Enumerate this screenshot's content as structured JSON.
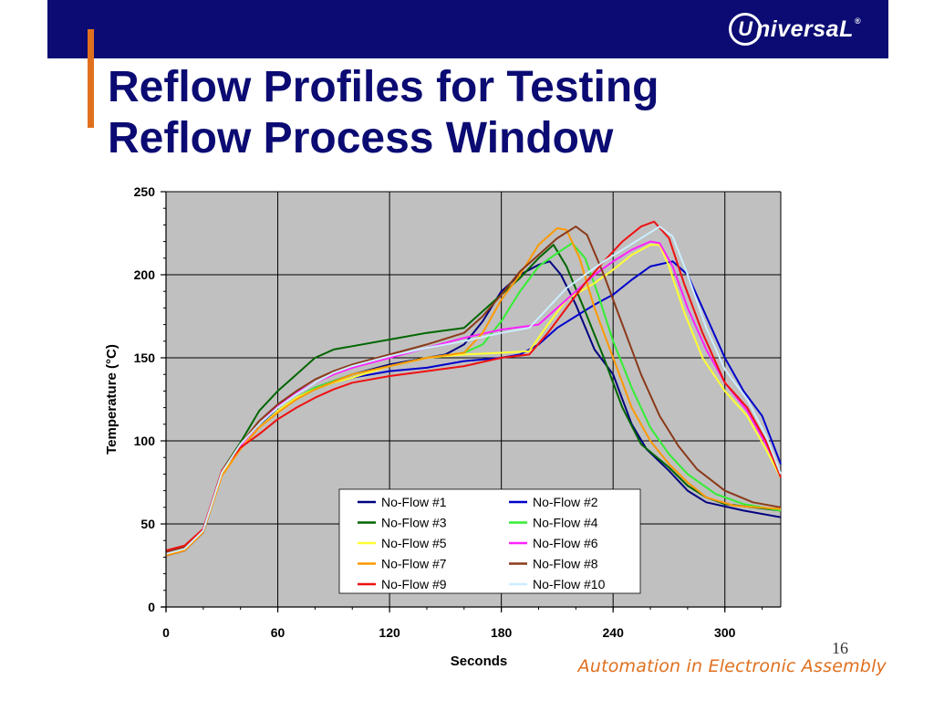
{
  "slide": {
    "title_line1": "Reflow Profiles for Testing",
    "title_line2": "Reflow Process Window",
    "logo_mark": "U",
    "logo_text": "niversaL",
    "logo_reg": "®",
    "page_number": "16",
    "tagline": "Automation in Electronic Assembly"
  },
  "colors": {
    "header_bar": "#0b0b73",
    "accent": "#e0701e",
    "plot_background": "#c0c0c0"
  },
  "chart_data": {
    "type": "line",
    "title": "",
    "xlabel": "Seconds",
    "ylabel": "Temperature (°C)",
    "xlim": [
      0,
      330
    ],
    "ylim": [
      0,
      250
    ],
    "xticks": [
      0,
      60,
      120,
      180,
      240,
      300
    ],
    "yticks": [
      0,
      50,
      100,
      150,
      200,
      250
    ],
    "grid": true,
    "legend_position": "lower-center",
    "series": [
      {
        "name": "No-Flow #1",
        "color": "#000080",
        "points": [
          [
            0,
            31
          ],
          [
            10,
            34
          ],
          [
            20,
            45
          ],
          [
            30,
            80
          ],
          [
            40,
            96
          ],
          [
            50,
            110
          ],
          [
            60,
            118
          ],
          [
            70,
            126
          ],
          [
            80,
            132
          ],
          [
            90,
            136
          ],
          [
            100,
            140
          ],
          [
            120,
            146
          ],
          [
            140,
            150
          ],
          [
            150,
            152
          ],
          [
            160,
            158
          ],
          [
            170,
            172
          ],
          [
            180,
            190
          ],
          [
            190,
            200
          ],
          [
            200,
            206
          ],
          [
            206,
            208
          ],
          [
            212,
            200
          ],
          [
            220,
            182
          ],
          [
            230,
            155
          ],
          [
            240,
            140
          ],
          [
            250,
            110
          ],
          [
            258,
            95
          ],
          [
            270,
            82
          ],
          [
            280,
            70
          ],
          [
            290,
            63
          ],
          [
            310,
            58
          ],
          [
            330,
            54
          ]
        ]
      },
      {
        "name": "No-Flow #2",
        "color": "#0000cc",
        "points": [
          [
            0,
            31
          ],
          [
            10,
            34
          ],
          [
            20,
            45
          ],
          [
            30,
            80
          ],
          [
            40,
            96
          ],
          [
            50,
            110
          ],
          [
            60,
            118
          ],
          [
            70,
            126
          ],
          [
            80,
            131
          ],
          [
            90,
            135
          ],
          [
            100,
            138
          ],
          [
            120,
            142
          ],
          [
            140,
            144
          ],
          [
            160,
            148
          ],
          [
            180,
            150
          ],
          [
            190,
            152
          ],
          [
            200,
            158
          ],
          [
            210,
            168
          ],
          [
            220,
            175
          ],
          [
            230,
            182
          ],
          [
            240,
            188
          ],
          [
            250,
            197
          ],
          [
            260,
            205
          ],
          [
            272,
            208
          ],
          [
            280,
            200
          ],
          [
            290,
            175
          ],
          [
            300,
            150
          ],
          [
            310,
            130
          ],
          [
            320,
            115
          ],
          [
            330,
            86
          ]
        ]
      },
      {
        "name": "No-Flow #3",
        "color": "#006600",
        "points": [
          [
            0,
            32
          ],
          [
            10,
            35
          ],
          [
            20,
            46
          ],
          [
            30,
            82
          ],
          [
            40,
            99
          ],
          [
            50,
            118
          ],
          [
            60,
            130
          ],
          [
            70,
            140
          ],
          [
            80,
            150
          ],
          [
            90,
            155
          ],
          [
            100,
            157
          ],
          [
            120,
            161
          ],
          [
            140,
            165
          ],
          [
            160,
            168
          ],
          [
            170,
            178
          ],
          [
            180,
            188
          ],
          [
            190,
            198
          ],
          [
            200,
            210
          ],
          [
            208,
            218
          ],
          [
            215,
            205
          ],
          [
            225,
            178
          ],
          [
            235,
            150
          ],
          [
            245,
            120
          ],
          [
            255,
            98
          ],
          [
            270,
            84
          ],
          [
            280,
            73
          ],
          [
            290,
            66
          ],
          [
            300,
            62
          ],
          [
            315,
            60
          ],
          [
            330,
            58
          ]
        ]
      },
      {
        "name": "No-Flow #4",
        "color": "#33ee33",
        "points": [
          [
            0,
            32
          ],
          [
            10,
            35
          ],
          [
            20,
            46
          ],
          [
            30,
            80
          ],
          [
            40,
            96
          ],
          [
            50,
            108
          ],
          [
            60,
            118
          ],
          [
            70,
            126
          ],
          [
            80,
            132
          ],
          [
            100,
            140
          ],
          [
            120,
            145
          ],
          [
            140,
            150
          ],
          [
            160,
            153
          ],
          [
            170,
            158
          ],
          [
            180,
            172
          ],
          [
            190,
            190
          ],
          [
            200,
            205
          ],
          [
            210,
            213
          ],
          [
            218,
            219
          ],
          [
            225,
            210
          ],
          [
            232,
            188
          ],
          [
            240,
            160
          ],
          [
            250,
            132
          ],
          [
            260,
            108
          ],
          [
            270,
            92
          ],
          [
            280,
            80
          ],
          [
            295,
            68
          ],
          [
            310,
            62
          ],
          [
            330,
            58
          ]
        ]
      },
      {
        "name": "No-Flow #5",
        "color": "#ffff33",
        "points": [
          [
            0,
            32
          ],
          [
            10,
            35
          ],
          [
            20,
            46
          ],
          [
            30,
            80
          ],
          [
            40,
            96
          ],
          [
            50,
            108
          ],
          [
            60,
            118
          ],
          [
            70,
            126
          ],
          [
            80,
            131
          ],
          [
            90,
            135
          ],
          [
            100,
            138
          ],
          [
            120,
            145
          ],
          [
            140,
            150
          ],
          [
            160,
            152
          ],
          [
            180,
            153
          ],
          [
            195,
            154
          ],
          [
            205,
            170
          ],
          [
            215,
            185
          ],
          [
            230,
            195
          ],
          [
            240,
            203
          ],
          [
            250,
            212
          ],
          [
            260,
            218
          ],
          [
            265,
            218
          ],
          [
            270,
            205
          ],
          [
            278,
            178
          ],
          [
            288,
            150
          ],
          [
            300,
            130
          ],
          [
            312,
            115
          ],
          [
            322,
            95
          ],
          [
            330,
            78
          ]
        ]
      },
      {
        "name": "No-Flow #6",
        "color": "#ff22ff",
        "points": [
          [
            0,
            33
          ],
          [
            10,
            36
          ],
          [
            20,
            47
          ],
          [
            30,
            82
          ],
          [
            40,
            97
          ],
          [
            50,
            110
          ],
          [
            60,
            121
          ],
          [
            70,
            129
          ],
          [
            80,
            135
          ],
          [
            90,
            140
          ],
          [
            100,
            144
          ],
          [
            120,
            150
          ],
          [
            140,
            156
          ],
          [
            160,
            162
          ],
          [
            180,
            167
          ],
          [
            200,
            170
          ],
          [
            210,
            180
          ],
          [
            220,
            190
          ],
          [
            230,
            200
          ],
          [
            240,
            208
          ],
          [
            250,
            215
          ],
          [
            260,
            220
          ],
          [
            265,
            219
          ],
          [
            272,
            205
          ],
          [
            280,
            180
          ],
          [
            290,
            155
          ],
          [
            300,
            135
          ],
          [
            312,
            118
          ],
          [
            322,
            98
          ],
          [
            330,
            80
          ]
        ]
      },
      {
        "name": "No-Flow #7",
        "color": "#ff9900",
        "points": [
          [
            0,
            31
          ],
          [
            10,
            34
          ],
          [
            20,
            45
          ],
          [
            30,
            79
          ],
          [
            40,
            95
          ],
          [
            50,
            108
          ],
          [
            60,
            117
          ],
          [
            70,
            125
          ],
          [
            80,
            131
          ],
          [
            100,
            140
          ],
          [
            120,
            145
          ],
          [
            140,
            150
          ],
          [
            160,
            153
          ],
          [
            170,
            165
          ],
          [
            180,
            185
          ],
          [
            190,
            200
          ],
          [
            200,
            218
          ],
          [
            210,
            228
          ],
          [
            215,
            227
          ],
          [
            222,
            210
          ],
          [
            230,
            180
          ],
          [
            240,
            150
          ],
          [
            250,
            120
          ],
          [
            260,
            100
          ],
          [
            270,
            86
          ],
          [
            280,
            75
          ],
          [
            290,
            66
          ],
          [
            305,
            61
          ],
          [
            330,
            59
          ]
        ]
      },
      {
        "name": "No-Flow #8",
        "color": "#8b3a1a",
        "points": [
          [
            0,
            33
          ],
          [
            10,
            36
          ],
          [
            20,
            46
          ],
          [
            30,
            82
          ],
          [
            40,
            98
          ],
          [
            50,
            112
          ],
          [
            60,
            122
          ],
          [
            70,
            130
          ],
          [
            80,
            137
          ],
          [
            90,
            142
          ],
          [
            100,
            146
          ],
          [
            120,
            152
          ],
          [
            140,
            158
          ],
          [
            160,
            165
          ],
          [
            170,
            175
          ],
          [
            180,
            188
          ],
          [
            190,
            202
          ],
          [
            200,
            212
          ],
          [
            210,
            222
          ],
          [
            220,
            229
          ],
          [
            226,
            224
          ],
          [
            235,
            200
          ],
          [
            245,
            170
          ],
          [
            255,
            140
          ],
          [
            265,
            115
          ],
          [
            275,
            97
          ],
          [
            285,
            83
          ],
          [
            300,
            70
          ],
          [
            315,
            63
          ],
          [
            330,
            60
          ]
        ]
      },
      {
        "name": "No-Flow #9",
        "color": "#ee1111",
        "points": [
          [
            0,
            34
          ],
          [
            10,
            37
          ],
          [
            20,
            47
          ],
          [
            30,
            82
          ],
          [
            40,
            96
          ],
          [
            50,
            104
          ],
          [
            60,
            113
          ],
          [
            70,
            120
          ],
          [
            80,
            126
          ],
          [
            90,
            131
          ],
          [
            100,
            135
          ],
          [
            120,
            139
          ],
          [
            140,
            142
          ],
          [
            160,
            145
          ],
          [
            180,
            150
          ],
          [
            195,
            152
          ],
          [
            205,
            165
          ],
          [
            215,
            180
          ],
          [
            225,
            195
          ],
          [
            235,
            208
          ],
          [
            245,
            220
          ],
          [
            255,
            229
          ],
          [
            262,
            232
          ],
          [
            270,
            222
          ],
          [
            278,
            195
          ],
          [
            288,
            165
          ],
          [
            300,
            135
          ],
          [
            312,
            120
          ],
          [
            322,
            100
          ],
          [
            330,
            78
          ]
        ]
      },
      {
        "name": "No-Flow #10",
        "color": "#cceeff",
        "points": [
          [
            0,
            32
          ],
          [
            10,
            35
          ],
          [
            20,
            46
          ],
          [
            30,
            81
          ],
          [
            40,
            98
          ],
          [
            50,
            110
          ],
          [
            60,
            120
          ],
          [
            70,
            128
          ],
          [
            80,
            135
          ],
          [
            90,
            141
          ],
          [
            100,
            145
          ],
          [
            120,
            151
          ],
          [
            140,
            156
          ],
          [
            160,
            160
          ],
          [
            180,
            165
          ],
          [
            195,
            168
          ],
          [
            205,
            180
          ],
          [
            215,
            192
          ],
          [
            225,
            200
          ],
          [
            235,
            208
          ],
          [
            245,
            215
          ],
          [
            255,
            222
          ],
          [
            265,
            229
          ],
          [
            272,
            223
          ],
          [
            280,
            200
          ],
          [
            290,
            168
          ],
          [
            300,
            143
          ],
          [
            312,
            125
          ],
          [
            322,
            103
          ],
          [
            330,
            80
          ]
        ]
      }
    ]
  }
}
